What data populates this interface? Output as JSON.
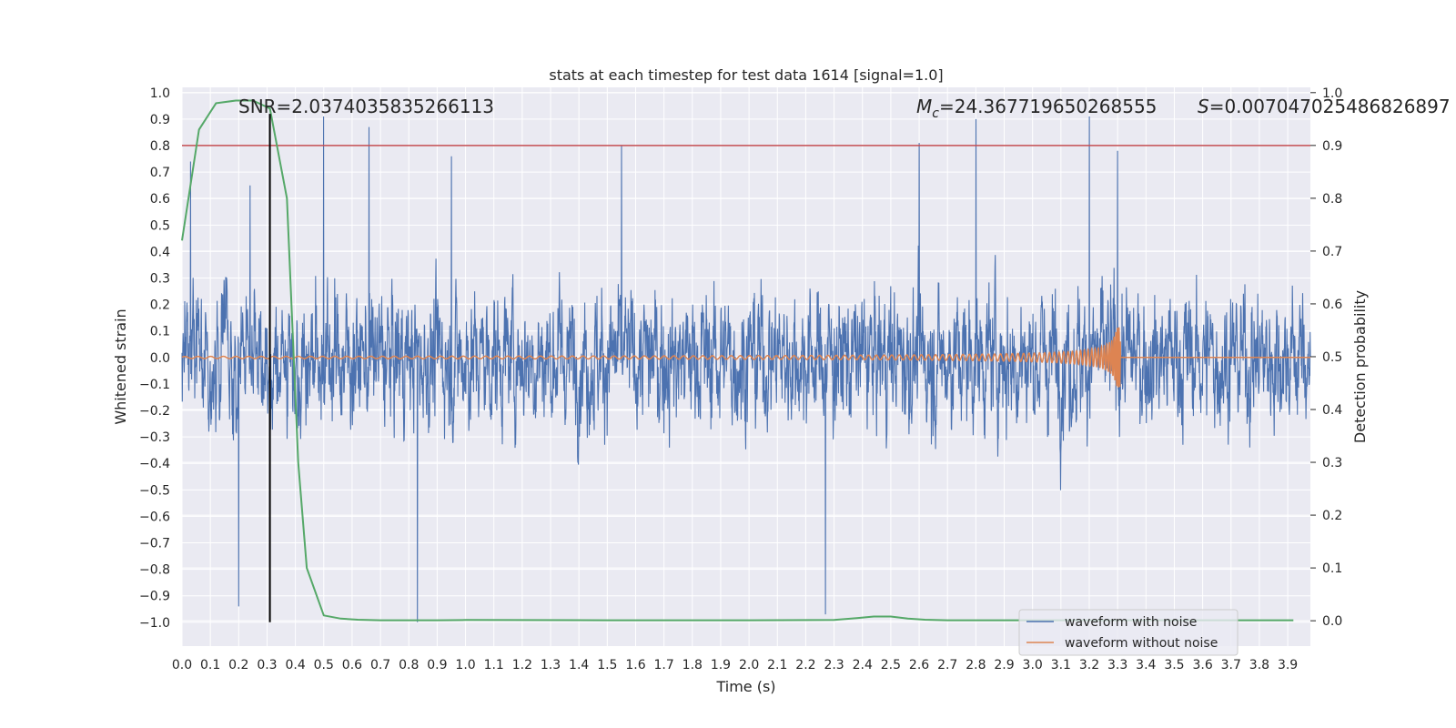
{
  "chart_data": {
    "type": "line",
    "title": "stats at each timestep for test data 1614 [signal=1.0]",
    "xlabel": "Time (s)",
    "ylabel": "Whitened strain",
    "y2label": "Detection probability",
    "xlim": [
      0.0,
      3.98
    ],
    "ylim": [
      -1.09,
      1.02
    ],
    "y2lim": [
      -0.048,
      1.01
    ],
    "x_ticks": [
      0.0,
      0.1,
      0.2,
      0.3,
      0.4,
      0.5,
      0.6,
      0.7,
      0.8,
      0.9,
      1.0,
      1.1,
      1.2,
      1.3,
      1.4,
      1.5,
      1.6,
      1.7,
      1.8,
      1.9,
      2.0,
      2.1,
      2.2,
      2.3,
      2.4,
      2.5,
      2.6,
      2.7,
      2.8,
      2.9,
      3.0,
      3.1,
      3.2,
      3.3,
      3.4,
      3.5,
      3.6,
      3.7,
      3.8,
      3.9
    ],
    "x_tick_labels": [
      "0.0",
      "0.1",
      "0.2",
      "0.3",
      "0.4",
      "0.5",
      "0.6",
      "0.7",
      "0.8",
      "0.9",
      "1.0",
      "1.1",
      "1.2",
      "1.3",
      "1.4",
      "1.5",
      "1.6",
      "1.7",
      "1.8",
      "1.9",
      "2.0",
      "2.1",
      "2.2",
      "2.3",
      "2.4",
      "2.5",
      "2.6",
      "2.7",
      "2.8",
      "2.9",
      "3.0",
      "3.1",
      "3.2",
      "3.3",
      "3.4",
      "3.5",
      "3.6",
      "3.7",
      "3.8",
      "3.9"
    ],
    "y_ticks": [
      1.0,
      0.9,
      0.8,
      0.7,
      0.6,
      0.5,
      0.4,
      0.3,
      0.2,
      0.1,
      0.0,
      -0.1,
      -0.2,
      -0.3,
      -0.4,
      -0.5,
      -0.6,
      -0.7,
      -0.8,
      -0.9,
      -1.0
    ],
    "y_tick_labels": [
      "1.0",
      "0.9",
      "0.8",
      "0.7",
      "0.6",
      "0.5",
      "0.4",
      "0.3",
      "0.2",
      "0.1",
      "0.0",
      "−0.1",
      "−0.2",
      "−0.3",
      "−0.4",
      "−0.5",
      "−0.6",
      "−0.7",
      "−0.8",
      "−0.9",
      "−1.0"
    ],
    "y2_ticks": [
      1.0,
      0.9,
      0.8,
      0.7,
      0.6,
      0.5,
      0.4,
      0.3,
      0.2,
      0.1,
      0.0
    ],
    "y2_tick_labels": [
      "1.0",
      "0.9",
      "0.8",
      "0.7",
      "0.6",
      "0.5",
      "0.4",
      "0.3",
      "0.2",
      "0.1",
      "0.0"
    ],
    "grid": true,
    "annotations": {
      "snr": "SNR=2.0374035835266113",
      "mc_symbol": "M",
      "mc_subscript": "c",
      "mc_value": "=24.367719650268555",
      "s_symbol": "S",
      "s_value": "=0.007047025486826897"
    },
    "series": [
      {
        "name": "waveform with noise",
        "color": "#4c72b0",
        "axis": "left",
        "description": "noisy whitened strain, approx uniform amplitude with peaks near ±0.9",
        "x_range": [
          0.0,
          3.98
        ],
        "sample_rate": 2048,
        "peak_samples": {
          "x": [
            0.03,
            0.2,
            0.24,
            0.5,
            0.66,
            0.83,
            0.95,
            1.55,
            2.27,
            2.6,
            2.8,
            3.2,
            3.3
          ],
          "y": [
            0.74,
            -0.94,
            0.65,
            0.91,
            0.87,
            -1.0,
            0.76,
            0.8,
            -0.97,
            0.81,
            0.9,
            0.91,
            0.78
          ]
        }
      },
      {
        "name": "waveform without noise",
        "color": "#dd8452",
        "axis": "left",
        "description": "chirp: amplitude grows from ~0.005 to ~0.2, frequency increases until merger near t=3.31 s, then flat at 0",
        "merger_time": 3.31,
        "max_amplitude": 0.2
      },
      {
        "name": "detection probability",
        "color": "#55a868",
        "axis": "right",
        "x": [
          0.0,
          0.06,
          0.12,
          0.19,
          0.25,
          0.31,
          0.37,
          0.41,
          0.44,
          0.5,
          0.56,
          0.62,
          0.7,
          0.8,
          0.9,
          1.0,
          1.5,
          2.0,
          2.3,
          2.38,
          2.44,
          2.5,
          2.56,
          2.62,
          2.7,
          2.8,
          3.0,
          3.5,
          3.92
        ],
        "y": [
          0.72,
          0.93,
          0.98,
          0.985,
          0.985,
          0.97,
          0.8,
          0.3,
          0.1,
          0.01,
          0.004,
          0.002,
          0.001,
          0.001,
          0.001,
          0.0015,
          0.001,
          0.001,
          0.0015,
          0.005,
          0.008,
          0.008,
          0.004,
          0.002,
          0.001,
          0.001,
          0.001,
          0.001,
          0.001
        ]
      }
    ],
    "threshold_line": {
      "axis": "right",
      "value": 0.9,
      "color": "#c44e52"
    },
    "vertical_marker": {
      "x": 0.31,
      "y_from": -1.0,
      "y_to": 0.92,
      "color": "#000000"
    },
    "legend": {
      "placement": "lower-right",
      "entries": [
        {
          "label": "waveform with noise",
          "color": "#4c72b0"
        },
        {
          "label": "waveform without noise",
          "color": "#dd8452"
        }
      ]
    }
  }
}
